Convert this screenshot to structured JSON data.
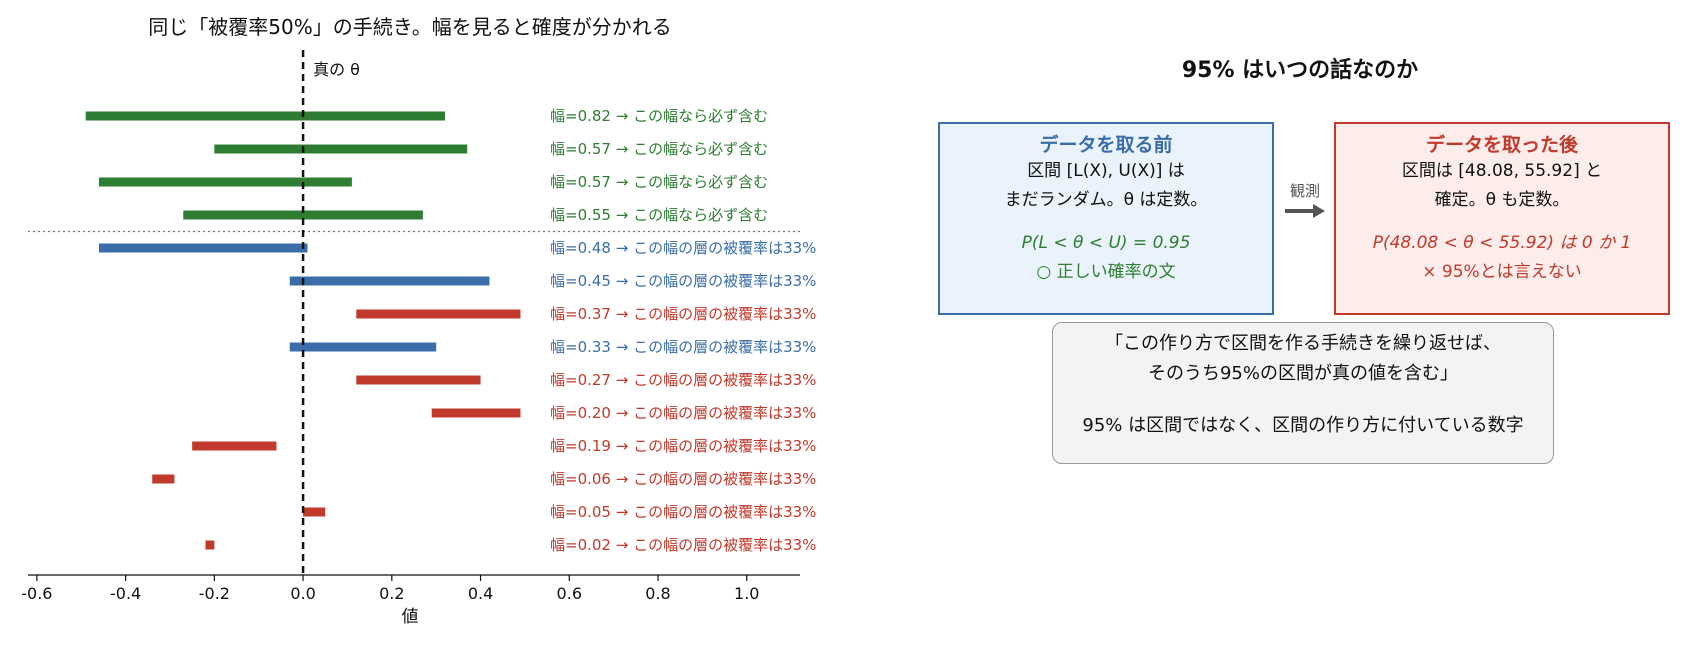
{
  "chart_data": {
    "type": "bar",
    "title": "同じ「被覆率50%」の手続き。幅を見ると確度が分かれる",
    "xlabel": "値",
    "xlim": [
      -0.62,
      1.12
    ],
    "xticks": [
      "-0.6",
      "-0.4",
      "-0.2",
      "0.0",
      "0.2",
      "0.4",
      "0.6",
      "0.8",
      "1.0"
    ],
    "xtick_values": [
      -0.6,
      -0.4,
      -0.2,
      0.0,
      0.2,
      0.4,
      0.6,
      0.8,
      1.0
    ],
    "true_theta": 0.0,
    "true_theta_label": "真の θ",
    "grid": false,
    "colors": {
      "certain": "#2e7d32",
      "cover": "#3b6ea8",
      "miss": "#c0392b"
    },
    "intervals": [
      {
        "low": -0.49,
        "high": 0.32,
        "status": "certain",
        "label": "幅=0.82 → この幅なら必ず含む"
      },
      {
        "low": -0.2,
        "high": 0.37,
        "status": "certain",
        "label": "幅=0.57 → この幅なら必ず含む"
      },
      {
        "low": -0.46,
        "high": 0.11,
        "status": "certain",
        "label": "幅=0.57 → この幅なら必ず含む"
      },
      {
        "low": -0.27,
        "high": 0.27,
        "status": "certain",
        "label": "幅=0.55 → この幅なら必ず含む"
      },
      {
        "low": -0.46,
        "high": 0.01,
        "status": "cover",
        "label": "幅=0.48 → この幅の層の被覆率は33%"
      },
      {
        "low": -0.03,
        "high": 0.42,
        "status": "cover",
        "label": "幅=0.45 → この幅の層の被覆率は33%"
      },
      {
        "low": 0.12,
        "high": 0.49,
        "status": "miss",
        "label": "幅=0.37 → この幅の層の被覆率は33%"
      },
      {
        "low": -0.03,
        "high": 0.3,
        "status": "cover",
        "label": "幅=0.33 → この幅の層の被覆率は33%"
      },
      {
        "low": 0.12,
        "high": 0.4,
        "status": "miss",
        "label": "幅=0.27 → この幅の層の被覆率は33%"
      },
      {
        "low": 0.29,
        "high": 0.49,
        "status": "miss",
        "label": "幅=0.20 → この幅の層の被覆率は33%"
      },
      {
        "low": -0.25,
        "high": -0.06,
        "status": "miss",
        "label": "幅=0.19 → この幅の層の被覆率は33%"
      },
      {
        "low": -0.34,
        "high": -0.29,
        "status": "miss",
        "label": "幅=0.06 → この幅の層の被覆率は33%"
      },
      {
        "low": 0.0,
        "high": 0.05,
        "status": "miss",
        "label": "幅=0.05 → この幅の層の被覆率は33%"
      },
      {
        "low": -0.22,
        "high": -0.2,
        "status": "miss",
        "label": "幅=0.02 → この幅の層の被覆率は33%"
      }
    ],
    "separator_after_index": 3
  },
  "panel": {
    "title": "95% はいつの話なのか",
    "before": {
      "title": "データを取る前",
      "line1": "区間 [L(X), U(X)] は",
      "line2": "まだランダム。θ は定数。",
      "formula": "P(L < θ < U) = 0.95",
      "verdict": "○ 正しい確率の文"
    },
    "arrow_label": "観測",
    "after": {
      "title": "データを取った後",
      "line1": "区間は [48.08, 55.92] と",
      "line2": "確定。θ も定数。",
      "formula": "P(48.08 < θ < 55.92) は 0 か 1",
      "verdict": "× 95%とは言えない"
    },
    "summary": {
      "line1": "「この作り方で区間を作る手続きを繰り返せば、",
      "line2": "そのうち95%の区間が真の値を含む」",
      "line3": "95% は区間ではなく、区間の作り方に付いている数字"
    },
    "colors": {
      "before": "#3b6ea8",
      "after": "#c0392b",
      "good": "#2e7d32"
    }
  }
}
